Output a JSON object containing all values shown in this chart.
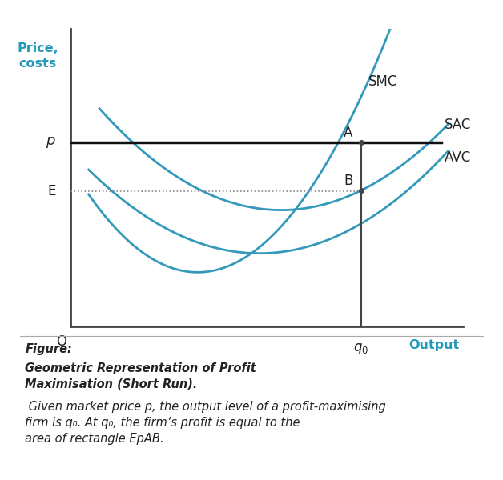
{
  "background_color": "#c8dff0",
  "chart_bg": "#ffffff",
  "curve_color": "#3399bb",
  "axis_color": "#444444",
  "price_line_color": "#111111",
  "dotted_line_color": "#888888",
  "label_color_cyan": "#2299bb",
  "label_color_dark": "#222222",
  "p_level": 0.68,
  "e_level": 0.5,
  "q0": 0.8,
  "figure_label": "Figure:",
  "xlabel": "Output",
  "ylabel1": "Price,",
  "ylabel2": "costs",
  "caption_bold": "Geometric Representation of Profit\nMaximisation (Short Run).",
  "caption_normal": "  Given market price p, the output level of a profit-maximising\nfirm is q₀. At q₀, the firm’s profit is equal to the\narea of rectangle EpAB."
}
